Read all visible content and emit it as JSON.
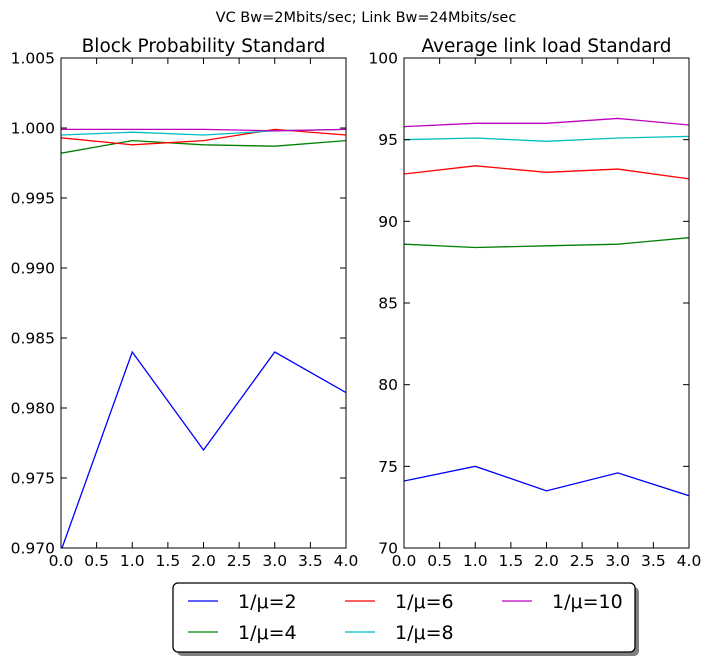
{
  "figure": {
    "suptitle": "VC Bw=2Mbits/sec; Link Bw=24Mbits/sec"
  },
  "legend": {
    "entries": [
      {
        "label": "1/μ=2",
        "color": "#0000ff"
      },
      {
        "label": "1/μ=4",
        "color": "#008000"
      },
      {
        "label": "1/μ=6",
        "color": "#ff0000"
      },
      {
        "label": "1/μ=8",
        "color": "#00bfbf"
      },
      {
        "label": "1/μ=10",
        "color": "#bf00bf"
      }
    ]
  },
  "chart_data": [
    {
      "type": "line",
      "title": "Block Probability Standard",
      "xlabel": "",
      "ylabel": "",
      "xlim": [
        0.0,
        4.0
      ],
      "ylim": [
        0.97,
        1.005
      ],
      "grid": false,
      "xticks": [
        "0.0",
        "0.5",
        "1.0",
        "1.5",
        "2.0",
        "2.5",
        "3.0",
        "3.5",
        "4.0"
      ],
      "yticks": [
        "0.970",
        "0.975",
        "0.980",
        "0.985",
        "0.990",
        "0.995",
        "1.000",
        "1.005"
      ],
      "x": [
        0,
        1,
        2,
        3,
        4
      ],
      "series": [
        {
          "name": "1/μ=2",
          "color": "#0000ff",
          "values": [
            0.9698,
            0.984,
            0.977,
            0.984,
            0.9811
          ]
        },
        {
          "name": "1/μ=4",
          "color": "#008000",
          "values": [
            0.9982,
            0.9991,
            0.9988,
            0.9987,
            0.9991
          ]
        },
        {
          "name": "1/μ=6",
          "color": "#ff0000",
          "values": [
            0.9993,
            0.9988,
            0.9991,
            0.9999,
            0.9995
          ]
        },
        {
          "name": "1/μ=8",
          "color": "#00bfbf",
          "values": [
            0.9995,
            0.9997,
            0.9995,
            0.9998,
            0.9999
          ]
        },
        {
          "name": "1/μ=10",
          "color": "#bf00bf",
          "values": [
            0.9999,
            0.9999,
            0.9999,
            0.9998,
            0.9999
          ]
        }
      ]
    },
    {
      "type": "line",
      "title": "Average link load Standard",
      "xlabel": "",
      "ylabel": "",
      "xlim": [
        0.0,
        4.0
      ],
      "ylim": [
        70,
        100
      ],
      "grid": false,
      "xticks": [
        "0.0",
        "0.5",
        "1.0",
        "1.5",
        "2.0",
        "2.5",
        "3.0",
        "3.5",
        "4.0"
      ],
      "yticks": [
        "70",
        "75",
        "80",
        "85",
        "90",
        "95",
        "100"
      ],
      "x": [
        0,
        1,
        2,
        3,
        4
      ],
      "series": [
        {
          "name": "1/μ=2",
          "color": "#0000ff",
          "values": [
            74.1,
            75.0,
            73.5,
            74.6,
            73.2
          ]
        },
        {
          "name": "1/μ=4",
          "color": "#008000",
          "values": [
            88.6,
            88.4,
            88.5,
            88.6,
            89.0
          ]
        },
        {
          "name": "1/μ=6",
          "color": "#ff0000",
          "values": [
            92.9,
            93.4,
            93.0,
            93.2,
            92.6
          ]
        },
        {
          "name": "1/μ=8",
          "color": "#00bfbf",
          "values": [
            95.0,
            95.1,
            94.9,
            95.1,
            95.2
          ]
        },
        {
          "name": "1/μ=10",
          "color": "#bf00bf",
          "values": [
            95.8,
            96.0,
            96.0,
            96.3,
            95.9
          ]
        }
      ]
    }
  ]
}
